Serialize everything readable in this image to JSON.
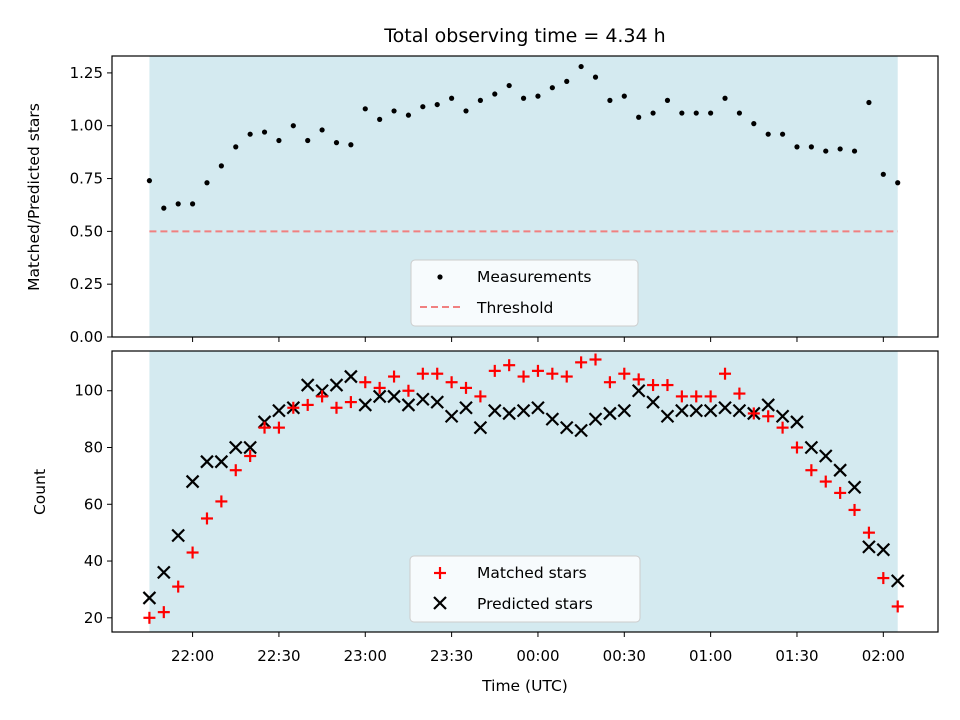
{
  "chart_data": [
    {
      "type": "scatter",
      "title": "Total observing time = 4.34 h",
      "xlabel": "",
      "ylabel": "Matched/Predicted stars",
      "ylim": [
        0,
        1.33
      ],
      "yticks": [
        "0.00",
        "0.25",
        "0.50",
        "0.75",
        "1.00",
        "1.25"
      ],
      "yticks_values": [
        0,
        0.25,
        0.5,
        0.75,
        1.0,
        1.25
      ],
      "observing_window_color": "#d4eaf0",
      "threshold": {
        "name": "Threshold",
        "value": 0.5,
        "color": "#f08080",
        "style": "dashed"
      },
      "series": [
        {
          "name": "Measurements",
          "color": "#000000",
          "marker": "dot",
          "x": [
            "21:45",
            "21:50",
            "21:55",
            "22:00",
            "22:05",
            "22:10",
            "22:15",
            "22:20",
            "22:25",
            "22:30",
            "22:35",
            "22:40",
            "22:45",
            "22:50",
            "22:55",
            "23:00",
            "23:05",
            "23:10",
            "23:15",
            "23:20",
            "23:25",
            "23:30",
            "23:35",
            "23:40",
            "23:45",
            "23:50",
            "23:55",
            "00:00",
            "00:05",
            "00:10",
            "00:15",
            "00:20",
            "00:25",
            "00:30",
            "00:35",
            "00:40",
            "00:45",
            "00:50",
            "00:55",
            "01:00",
            "01:05",
            "01:10",
            "01:15",
            "01:20",
            "01:25",
            "01:30",
            "01:35",
            "01:40",
            "01:45",
            "01:50",
            "01:55",
            "02:00",
            "02:05"
          ],
          "values": [
            0.74,
            0.61,
            0.63,
            0.63,
            0.73,
            0.81,
            0.9,
            0.96,
            0.97,
            0.93,
            1.0,
            0.93,
            0.98,
            0.92,
            0.91,
            1.08,
            1.03,
            1.07,
            1.05,
            1.09,
            1.1,
            1.13,
            1.07,
            1.12,
            1.15,
            1.19,
            1.13,
            1.14,
            1.18,
            1.21,
            1.28,
            1.23,
            1.12,
            1.14,
            1.04,
            1.06,
            1.12,
            1.06,
            1.06,
            1.06,
            1.13,
            1.06,
            1.01,
            0.96,
            0.96,
            0.9,
            0.9,
            0.88,
            0.89,
            0.88,
            1.11,
            0.77,
            0.73
          ]
        }
      ],
      "legend": {
        "position": "lower center",
        "entries": [
          "Measurements",
          "Threshold"
        ]
      }
    },
    {
      "type": "scatter",
      "title": "",
      "xlabel": "Time (UTC)",
      "ylabel": "Count",
      "ylim": [
        15,
        114
      ],
      "yticks": [
        "20",
        "40",
        "60",
        "80",
        "100"
      ],
      "yticks_values": [
        20,
        40,
        60,
        80,
        100
      ],
      "xlim": [
        "21:32",
        "02:19"
      ],
      "xticks": [
        "22:00",
        "22:30",
        "23:00",
        "23:30",
        "00:00",
        "00:30",
        "01:00",
        "01:30",
        "02:00"
      ],
      "observing_window_color": "#d4eaf0",
      "series": [
        {
          "name": "Matched stars",
          "color": "#ff0000",
          "marker": "plus",
          "x": [
            "21:45",
            "21:50",
            "21:55",
            "22:00",
            "22:05",
            "22:10",
            "22:15",
            "22:20",
            "22:25",
            "22:30",
            "22:35",
            "22:40",
            "22:45",
            "22:50",
            "22:55",
            "23:00",
            "23:05",
            "23:10",
            "23:15",
            "23:20",
            "23:25",
            "23:30",
            "23:35",
            "23:40",
            "23:45",
            "23:50",
            "23:55",
            "00:00",
            "00:05",
            "00:10",
            "00:15",
            "00:20",
            "00:25",
            "00:30",
            "00:35",
            "00:40",
            "00:45",
            "00:50",
            "00:55",
            "01:00",
            "01:05",
            "01:10",
            "01:15",
            "01:20",
            "01:25",
            "01:30",
            "01:35",
            "01:40",
            "01:45",
            "01:50",
            "01:55",
            "02:00",
            "02:05"
          ],
          "values": [
            20,
            22,
            31,
            43,
            55,
            61,
            72,
            77,
            87,
            87,
            94,
            95,
            98,
            94,
            96,
            103,
            101,
            105,
            100,
            106,
            106,
            103,
            101,
            98,
            107,
            109,
            105,
            107,
            106,
            105,
            110,
            111,
            103,
            106,
            104,
            102,
            102,
            98,
            98,
            98,
            106,
            99,
            92,
            91,
            87,
            80,
            72,
            68,
            64,
            58,
            50,
            34,
            24
          ]
        },
        {
          "name": "Predicted stars",
          "color": "#000000",
          "marker": "x",
          "x": [
            "21:45",
            "21:50",
            "21:55",
            "22:00",
            "22:05",
            "22:10",
            "22:15",
            "22:20",
            "22:25",
            "22:30",
            "22:35",
            "22:40",
            "22:45",
            "22:50",
            "22:55",
            "23:00",
            "23:05",
            "23:10",
            "23:15",
            "23:20",
            "23:25",
            "23:30",
            "23:35",
            "23:40",
            "23:45",
            "23:50",
            "23:55",
            "00:00",
            "00:05",
            "00:10",
            "00:15",
            "00:20",
            "00:25",
            "00:30",
            "00:35",
            "00:40",
            "00:45",
            "00:50",
            "00:55",
            "01:00",
            "01:05",
            "01:10",
            "01:15",
            "01:20",
            "01:25",
            "01:30",
            "01:35",
            "01:40",
            "01:45",
            "01:50",
            "01:55",
            "02:00",
            "02:05"
          ],
          "values": [
            27,
            36,
            49,
            68,
            75,
            75,
            80,
            80,
            89,
            93,
            94,
            102,
            100,
            102,
            105,
            95,
            98,
            98,
            95,
            97,
            96,
            91,
            94,
            87,
            93,
            92,
            93,
            94,
            90,
            87,
            86,
            90,
            92,
            93,
            100,
            96,
            91,
            93,
            93,
            93,
            94,
            93,
            92,
            95,
            91,
            89,
            80,
            77,
            72,
            66,
            45,
            44,
            33
          ]
        }
      ],
      "legend": {
        "position": "lower center",
        "entries": [
          "Matched stars",
          "Predicted stars"
        ]
      }
    }
  ]
}
